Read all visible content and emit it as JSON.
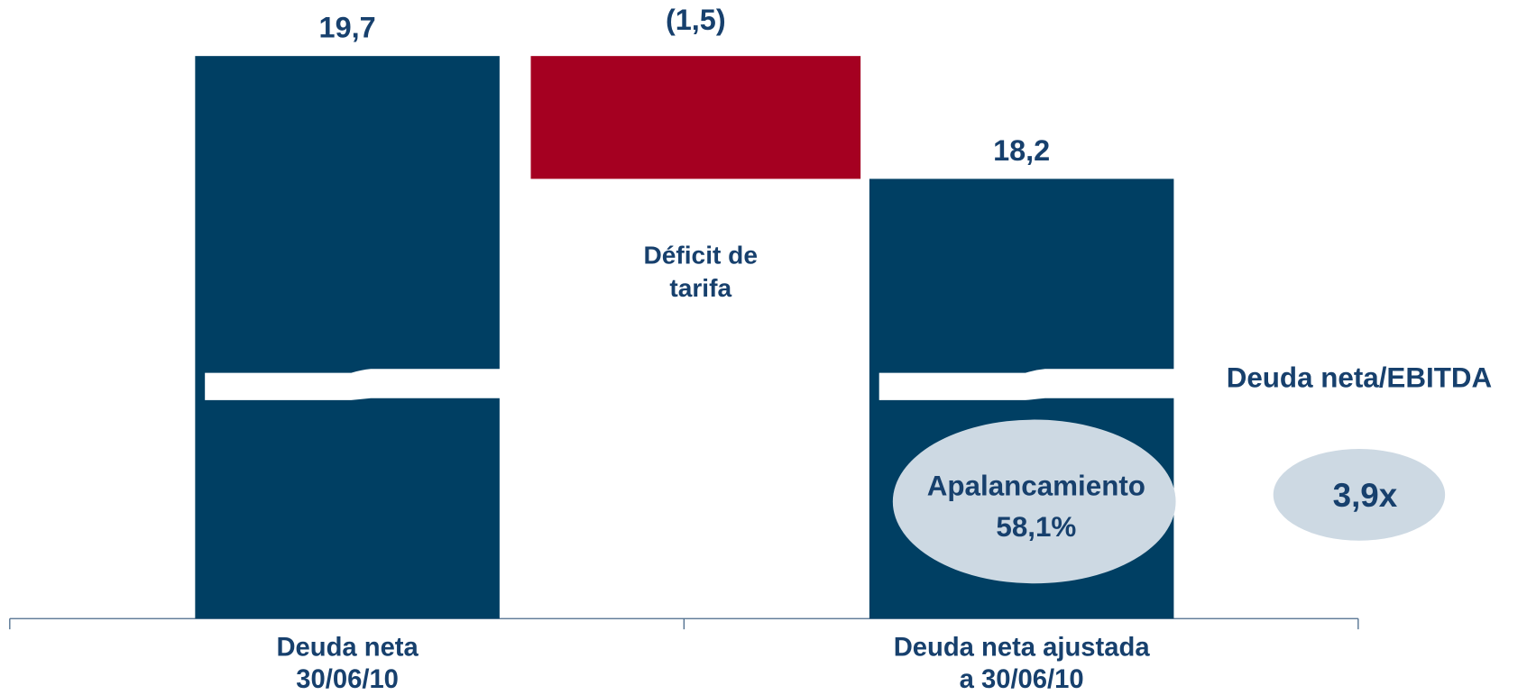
{
  "chart_data": {
    "type": "waterfall",
    "categories": [
      [
        "Deuda neta",
        "30/06/10"
      ],
      [
        "Déficit de",
        "tarifa"
      ],
      [
        "Deuda neta ajustada",
        "a 30/06/10"
      ]
    ],
    "measure": [
      "absolute",
      "relative",
      "total"
    ],
    "values": [
      19.7,
      -1.5,
      18.2
    ],
    "value_labels": [
      "19,7",
      "(1,5)",
      "18,2"
    ],
    "color": "#003f63",
    "negative_color": "#a50021",
    "ylim": [
      12.83,
      20.38
    ],
    "axis_break": true,
    "annotations": [
      {
        "lines": [
          "Apalancamiento",
          "58,1%"
        ]
      },
      {
        "lines": [
          "Deuda neta/EBITDA"
        ]
      },
      {
        "lines": [
          "3,9x"
        ]
      }
    ]
  }
}
